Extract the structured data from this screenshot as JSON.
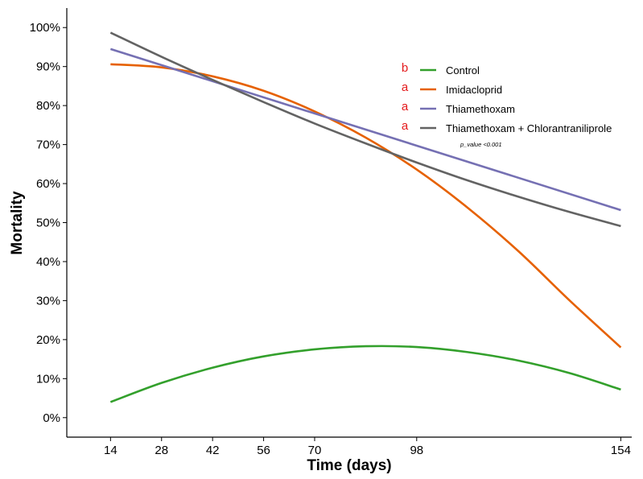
{
  "chart_data": {
    "type": "line",
    "title": "",
    "xlabel": "Time (days)",
    "ylabel": "Mortality",
    "xlim": [
      2,
      157
    ],
    "ylim": [
      -5,
      105
    ],
    "xticks": [
      14,
      28,
      42,
      56,
      70,
      98,
      154
    ],
    "x_tick_labels": [
      "14",
      "28",
      "42",
      "56",
      "70",
      "98",
      "154"
    ],
    "yticks": [
      0,
      10,
      20,
      30,
      40,
      50,
      60,
      70,
      80,
      90,
      100
    ],
    "y_tick_labels": [
      "0%",
      "10%",
      "20%",
      "30%",
      "40%",
      "50%",
      "60%",
      "70%",
      "80%",
      "90%",
      "100%"
    ],
    "grid": false,
    "legend_position": "top-right",
    "series": [
      {
        "name": "Control",
        "letter": "b",
        "color": "#33a02c",
        "x": [
          14,
          28,
          42,
          56,
          70,
          84,
          98,
          112,
          126,
          140,
          154
        ],
        "values": [
          4,
          8.9,
          12.8,
          15.7,
          17.5,
          18.3,
          18.1,
          16.8,
          14.6,
          11.4,
          7.2
        ]
      },
      {
        "name": "Imidacloprid",
        "letter": "a",
        "color": "#e66101",
        "x": [
          14,
          28,
          42,
          56,
          70,
          84,
          98,
          112,
          126,
          140,
          154
        ],
        "values": [
          90.6,
          89.8,
          87.5,
          83.8,
          78.5,
          71.8,
          63.6,
          53.8,
          42.6,
          30,
          18
        ]
      },
      {
        "name": "Thiamethoxam",
        "letter": "a",
        "color": "#7570b3",
        "x": [
          14,
          154
        ],
        "values": [
          94.5,
          53.2
        ]
      },
      {
        "name": "Thiamethoxam + Chlorantraniliprole",
        "letter": "a",
        "color": "#636363",
        "x": [
          14,
          28,
          42,
          56,
          70,
          84,
          98,
          112,
          126,
          140,
          154
        ],
        "values": [
          98.7,
          92.5,
          86.6,
          80.9,
          75.4,
          70.3,
          65.4,
          60.8,
          56.6,
          52.7,
          49.1
        ]
      }
    ],
    "annotation": "p_value <0.001"
  }
}
